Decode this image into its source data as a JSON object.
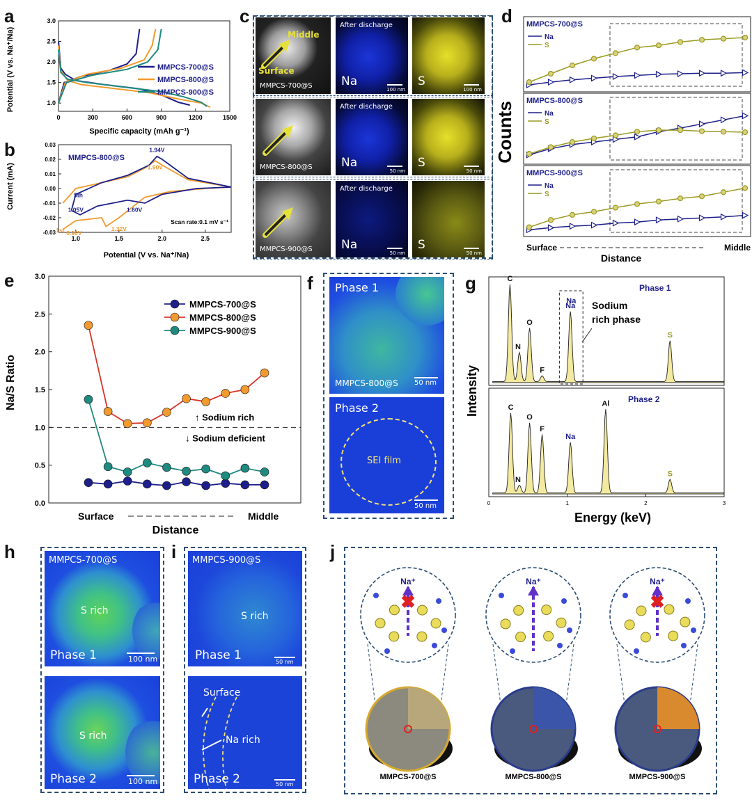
{
  "panel_labels": [
    "a",
    "b",
    "c",
    "d",
    "e",
    "f",
    "g",
    "h",
    "i",
    "j"
  ],
  "colors": {
    "s700": "#1d1f8a",
    "s800": "#f29a2e",
    "s900": "#1f8a80",
    "olive": "#9a9a22",
    "frame": "#2b4d73",
    "map_blue": "#1430c8",
    "map_green": "#4ad07a",
    "map_yellow": "#e9e12a",
    "eds_fill": "#f3eaa0"
  },
  "chart_data": [
    {
      "id": "a",
      "type": "line",
      "title": "",
      "xlabel": "Specific capacity (mAh g⁻¹)",
      "ylabel": "Potential (V vs. Na⁺/Na)",
      "xlim": [
        0,
        1500
      ],
      "ylim": [
        0.8,
        3.0
      ],
      "xticks": [
        0,
        300,
        600,
        900,
        1200,
        1500
      ],
      "yticks": [
        1.0,
        1.5,
        2.0,
        2.5,
        3.0
      ],
      "series": [
        {
          "name": "MMPCS-700@S",
          "discharge": [
            [
              0,
              2.5
            ],
            [
              20,
              1.85
            ],
            [
              60,
              1.7
            ],
            [
              150,
              1.55
            ],
            [
              400,
              1.45
            ],
            [
              700,
              1.35
            ],
            [
              900,
              1.2
            ],
            [
              1050,
              1.02
            ],
            [
              1150,
              0.95
            ]
          ],
          "charge": [
            [
              0,
              1.0
            ],
            [
              50,
              1.5
            ],
            [
              200,
              1.65
            ],
            [
              450,
              1.8
            ],
            [
              600,
              1.95
            ],
            [
              680,
              2.2
            ],
            [
              710,
              2.8
            ]
          ]
        },
        {
          "name": "MMPCS-800@S",
          "discharge": [
            [
              0,
              2.4
            ],
            [
              20,
              1.8
            ],
            [
              80,
              1.55
            ],
            [
              200,
              1.45
            ],
            [
              500,
              1.35
            ],
            [
              800,
              1.25
            ],
            [
              1050,
              1.1
            ],
            [
              1250,
              1.0
            ],
            [
              1330,
              0.9
            ]
          ],
          "charge": [
            [
              0,
              1.0
            ],
            [
              60,
              1.5
            ],
            [
              250,
              1.7
            ],
            [
              550,
              1.85
            ],
            [
              750,
              2.05
            ],
            [
              820,
              2.4
            ],
            [
              850,
              2.8
            ]
          ]
        },
        {
          "name": "MMPCS-900@S",
          "discharge": [
            [
              0,
              2.3
            ],
            [
              20,
              1.75
            ],
            [
              80,
              1.58
            ],
            [
              250,
              1.5
            ],
            [
              600,
              1.38
            ],
            [
              900,
              1.28
            ],
            [
              1100,
              1.15
            ],
            [
              1250,
              1.02
            ],
            [
              1300,
              0.92
            ]
          ],
          "charge": [
            [
              0,
              1.0
            ],
            [
              70,
              1.5
            ],
            [
              300,
              1.68
            ],
            [
              600,
              1.82
            ],
            [
              780,
              2.0
            ],
            [
              870,
              2.3
            ],
            [
              900,
              2.8
            ]
          ]
        }
      ]
    },
    {
      "id": "b",
      "type": "line",
      "title": "MMPCS-800@S",
      "xlabel": "Potential (V vs. Na⁺/Na)",
      "ylabel": "Current (mA)",
      "xlim": [
        0.8,
        2.8
      ],
      "ylim": [
        -0.03,
        0.03
      ],
      "xticks": [
        1.0,
        1.5,
        2.0,
        2.5
      ],
      "yticks": [
        -0.03,
        -0.02,
        -0.01,
        0.0,
        0.01,
        0.02,
        0.03
      ],
      "series": [
        {
          "name": "1st",
          "points": [
            [
              0.85,
              -0.028
            ],
            [
              1.0,
              -0.022
            ],
            [
              1.3,
              -0.02
            ],
            [
              1.35,
              -0.026
            ],
            [
              1.5,
              -0.02
            ],
            [
              1.8,
              -0.006
            ],
            [
              2.1,
              -0.002
            ],
            [
              2.5,
              0.0
            ],
            [
              2.8,
              0.001
            ],
            [
              2.3,
              0.006
            ],
            [
              2.0,
              0.016
            ],
            [
              1.92,
              0.019
            ],
            [
              1.8,
              0.014
            ],
            [
              1.6,
              0.008
            ],
            [
              1.3,
              0.004
            ],
            [
              1.0,
              0.0
            ],
            [
              0.85,
              -0.01
            ]
          ]
        },
        {
          "name": "5th",
          "points": [
            [
              0.95,
              -0.015
            ],
            [
              1.05,
              -0.018
            ],
            [
              1.25,
              -0.012
            ],
            [
              1.6,
              -0.008
            ],
            [
              1.8,
              -0.01
            ],
            [
              2.0,
              -0.004
            ],
            [
              2.4,
              0.0
            ],
            [
              2.8,
              0.001
            ],
            [
              2.3,
              0.007
            ],
            [
              2.0,
              0.02
            ],
            [
              1.94,
              0.022
            ],
            [
              1.85,
              0.016
            ],
            [
              1.6,
              0.009
            ],
            [
              1.3,
              0.004
            ],
            [
              1.0,
              -0.004
            ],
            [
              0.95,
              -0.015
            ]
          ]
        }
      ],
      "annotations": [
        "1.94V",
        "1.90V",
        "5th",
        "1.05V",
        "1.60V",
        "1st",
        "0.96V",
        "1.32V",
        "Scan rate:0.1 mV s⁻¹"
      ]
    },
    {
      "id": "d",
      "type": "line",
      "xlabel": "Distance",
      "ylabel": "Counts",
      "x_start_label": "Surface",
      "x_end_label": "Middle",
      "panels": [
        {
          "title": "MMPCS-700@S",
          "Na": [
            0.05,
            0.1,
            0.14,
            0.17,
            0.2,
            0.22,
            0.24,
            0.25,
            0.26,
            0.26,
            0.27
          ],
          "S": [
            0.1,
            0.25,
            0.4,
            0.52,
            0.62,
            0.72,
            0.76,
            0.82,
            0.86,
            0.88,
            0.9
          ]
        },
        {
          "title": "MMPCS-800@S",
          "Na": [
            0.1,
            0.22,
            0.3,
            0.35,
            0.4,
            0.45,
            0.55,
            0.62,
            0.7,
            0.78,
            0.86
          ],
          "S": [
            0.12,
            0.25,
            0.35,
            0.42,
            0.48,
            0.55,
            0.58,
            0.58,
            0.56,
            0.55,
            0.54
          ]
        },
        {
          "title": "MMPCS-900@S",
          "Na": [
            0.05,
            0.09,
            0.12,
            0.14,
            0.18,
            0.2,
            0.24,
            0.26,
            0.28,
            0.3,
            0.33
          ],
          "S": [
            0.1,
            0.24,
            0.34,
            0.4,
            0.48,
            0.55,
            0.6,
            0.66,
            0.7,
            0.78,
            0.86
          ]
        }
      ],
      "legend": [
        "Na",
        "S"
      ]
    },
    {
      "id": "e",
      "type": "line",
      "title": "",
      "xlabel": "Distance",
      "ylabel": "Na/S Ratio",
      "x_start_label": "Surface",
      "x_end_label": "Middle",
      "ylim": [
        0,
        3.0
      ],
      "yticks": [
        0.0,
        0.5,
        1.0,
        1.5,
        2.0,
        2.5,
        3.0
      ],
      "series": [
        {
          "name": "MMPCS-700@S",
          "values": [
            0.27,
            0.25,
            0.29,
            0.25,
            0.23,
            0.28,
            0.23,
            0.26,
            0.24,
            0.24
          ]
        },
        {
          "name": "MMPCS-800@S",
          "values": [
            2.35,
            1.21,
            1.05,
            1.06,
            1.2,
            1.38,
            1.34,
            1.45,
            1.5,
            1.72
          ]
        },
        {
          "name": "MMPCS-900@S",
          "values": [
            1.37,
            0.48,
            0.41,
            0.53,
            0.47,
            0.42,
            0.45,
            0.36,
            0.46,
            0.41
          ]
        }
      ],
      "reference_line": 1.0,
      "annot_rich": "Sodium rich",
      "annot_deficient": "Sodium deficient"
    },
    {
      "id": "g",
      "type": "line",
      "xlabel": "Energy (keV)",
      "ylabel": "Intensity",
      "xlim": [
        0,
        3
      ],
      "xticks": [
        0,
        1,
        2,
        3
      ],
      "panels": [
        {
          "title": "Phase 1",
          "peaks": [
            [
              0.27,
              1.0
            ],
            [
              0.39,
              0.3
            ],
            [
              0.52,
              0.55
            ],
            [
              0.68,
              0.06
            ],
            [
              1.04,
              0.72
            ],
            [
              2.31,
              0.42
            ]
          ],
          "labels": [
            "C",
            "N",
            "O",
            "F",
            "Na",
            "S"
          ]
        },
        {
          "title": "Phase 2",
          "peaks": [
            [
              0.28,
              0.82
            ],
            [
              0.39,
              0.08
            ],
            [
              0.52,
              0.72
            ],
            [
              0.68,
              0.6
            ],
            [
              1.04,
              0.52
            ],
            [
              1.49,
              0.86
            ],
            [
              2.31,
              0.14
            ]
          ],
          "labels": [
            "C",
            "N",
            "O",
            "F",
            "Na",
            "Al",
            "S"
          ]
        }
      ],
      "box_label": "Na",
      "annot": "Sodium rich phase"
    }
  ],
  "panel_c": {
    "rows": [
      {
        "sample": "MMPCS-700@S",
        "scale": "100 nm",
        "scale_s": "100 nm",
        "middle": "Middle",
        "surface": "Surface"
      },
      {
        "sample": "MMPCS-800@S",
        "scale": "50 nm",
        "scale_s": "50 nm"
      },
      {
        "sample": "MMPCS-900@S",
        "scale": "50 nm",
        "scale_s": "50 nm"
      }
    ],
    "after": "After discharge",
    "na": "Na",
    "s": "S"
  },
  "panel_f": {
    "phase1": "Phase 1",
    "phase2": "Phase 2",
    "sample": "MMPCS-800@S",
    "scale": "50 nm",
    "sei": "SEI film"
  },
  "panel_h": {
    "sample": "MMPCS-700@S",
    "srich": "S rich",
    "phase1": "Phase 1",
    "phase2": "Phase 2",
    "scale": "100 nm"
  },
  "panel_i": {
    "sample": "MMPCS-900@S",
    "srich": "S rich",
    "phase1": "Phase 1",
    "phase2": "Phase 2",
    "scale": "50 nm",
    "surface": "Surface",
    "narich": "Na rich"
  },
  "panel_j": {
    "ion": "Na⁺",
    "labels": [
      "MMPCS-700@S",
      "MMPCS-800@S",
      "MMPCS-900@S"
    ]
  }
}
